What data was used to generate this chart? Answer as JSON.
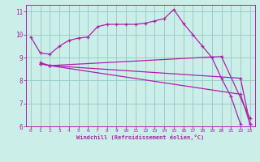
{
  "background_color": "#cceee8",
  "line_color": "#aa22aa",
  "grid_color": "#99cccc",
  "xlabel": "Windchill (Refroidissement éolien,°C)",
  "xlim": [
    -0.5,
    23.5
  ],
  "ylim": [
    6,
    11.3
  ],
  "yticks": [
    6,
    7,
    8,
    9,
    10,
    11
  ],
  "xticks": [
    0,
    1,
    2,
    3,
    4,
    5,
    6,
    7,
    8,
    9,
    10,
    11,
    12,
    13,
    14,
    15,
    16,
    17,
    18,
    19,
    20,
    21,
    22,
    23
  ],
  "series": [
    {
      "x": [
        0,
        1,
        2,
        3,
        4,
        5,
        6,
        7,
        8,
        9,
        10,
        11,
        12,
        13,
        14,
        15,
        16,
        17,
        18,
        19,
        20,
        21,
        22
      ],
      "y": [
        9.9,
        9.2,
        9.15,
        9.5,
        9.75,
        9.85,
        9.9,
        10.35,
        10.45,
        10.45,
        10.45,
        10.45,
        10.5,
        10.6,
        10.7,
        11.1,
        10.5,
        10.0,
        9.5,
        9.0,
        8.1,
        7.3,
        6.1
      ]
    },
    {
      "x": [
        1,
        2,
        20,
        23
      ],
      "y": [
        8.78,
        8.65,
        9.05,
        6.35
      ]
    },
    {
      "x": [
        1,
        2,
        22,
        23
      ],
      "y": [
        8.73,
        8.65,
        8.1,
        6.1
      ]
    },
    {
      "x": [
        1,
        2,
        22,
        23
      ],
      "y": [
        8.73,
        8.65,
        7.4,
        6.1
      ]
    }
  ]
}
